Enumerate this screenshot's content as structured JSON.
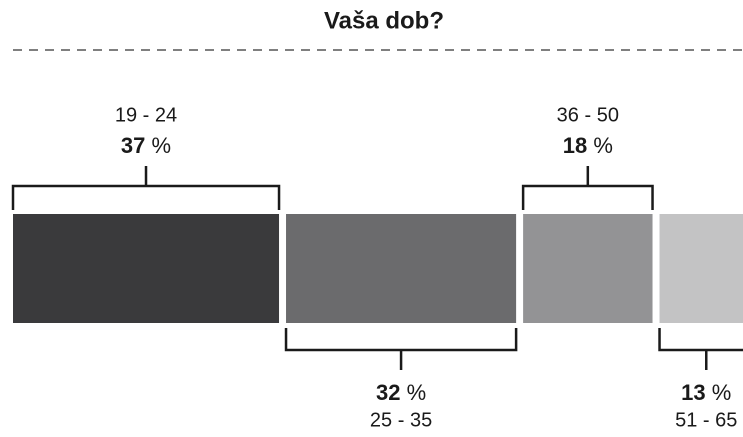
{
  "chart_data": {
    "type": "stacked_bar",
    "title": "Vaša dob?",
    "categories": [
      "19 - 24",
      "25 - 35",
      "36 - 50",
      "51 - 65"
    ],
    "values": [
      37,
      32,
      18,
      13
    ],
    "value_labels": [
      "37 %",
      "32 %",
      "18 %",
      "13 %"
    ],
    "colors": [
      "#3a3a3c",
      "#6b6b6d",
      "#939395",
      "#c3c3c4"
    ]
  }
}
